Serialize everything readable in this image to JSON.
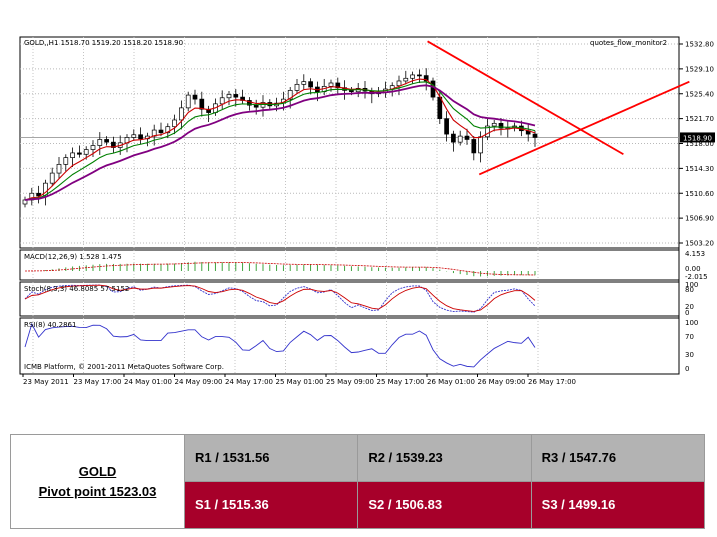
{
  "chart_data": {
    "type": "candlestick",
    "symbol_header": "GOLD,,H1  1518.70 1519.20 1518.20 1518.90",
    "indicator_label": "quotes_flow_monitor2",
    "price_axis": {
      "ticks": [
        "1532.80",
        "1529.10",
        "1525.40",
        "1521.70",
        "1518.00",
        "1514.30",
        "1510.60",
        "1506.90",
        "1503.20"
      ],
      "current_price": "1518.90",
      "ylim": [
        1503.2,
        1532.8
      ]
    },
    "time_axis_labels": [
      "23 May 2011",
      "23 May 17:00",
      "24 May 01:00",
      "24 May 09:00",
      "24 May 17:00",
      "25 May 01:00",
      "25 May 09:00",
      "25 May 17:00",
      "26 May 01:00",
      "26 May 09:00",
      "26 May 17:00"
    ],
    "close_series": [
      1509.6,
      1510.6,
      1510.2,
      1512.1,
      1513.6,
      1514.9,
      1515.9,
      1516.6,
      1516.4,
      1517.1,
      1517.7,
      1518.6,
      1518.2,
      1517.4,
      1518.1,
      1518.9,
      1519.3,
      1518.7,
      1519.1,
      1520.0,
      1519.6,
      1520.5,
      1521.5,
      1523.3,
      1525.2,
      1524.6,
      1523.1,
      1522.6,
      1523.9,
      1524.8,
      1525.3,
      1524.9,
      1524.4,
      1523.7,
      1523.4,
      1524.1,
      1523.6,
      1524.0,
      1524.6,
      1525.9,
      1526.8,
      1527.2,
      1526.4,
      1525.7,
      1526.5,
      1527.0,
      1526.3,
      1525.9,
      1525.7,
      1526.2,
      1525.8,
      1525.4,
      1525.6,
      1526.1,
      1526.6,
      1527.3,
      1527.7,
      1528.2,
      1528.1,
      1527.3,
      1524.9,
      1521.7,
      1519.4,
      1518.2,
      1519.1,
      1518.6,
      1516.6,
      1519.0,
      1520.6,
      1521.0,
      1520.3,
      1520.3,
      1520.6,
      1519.9,
      1519.4,
      1518.9
    ],
    "trend_lines": [
      {
        "from": [
          "23 May 2011 + 88 bars",
          1533.2
        ],
        "to": [
          "26 May 17:00 + 8 bars",
          1516.4
        ]
      },
      {
        "from": [
          "23 May 2011 + 98 bars",
          1513.4
        ],
        "to": [
          "26 May 17:00 + 30 bars",
          1527.2
        ]
      }
    ],
    "macd": {
      "label": "MACD(12,26,9) 1.528 1.475",
      "ticks": [
        "4.153",
        "0.00",
        "-2.015"
      ]
    },
    "stoch": {
      "label": "Stoch(8,3,3) 46.8085 57.5152",
      "ticks": [
        "100",
        "80",
        "20",
        "0"
      ]
    },
    "rsi": {
      "label": "RSI(8) 40.2861",
      "ticks": [
        "100",
        "70",
        "30",
        "0"
      ]
    },
    "copyright": "ICMB Platform, © 2001-2011 MetaQuotes Software Corp.",
    "colors": {
      "ma_fast": "#cc0000",
      "ma_mid": "#008000",
      "ma_slow": "#800080",
      "trend": "#ff0000",
      "indicator": "#3333cc"
    }
  },
  "pivot": {
    "instrument": "GOLD",
    "pivot_label": "Pivot point 1523.03",
    "resistances": [
      "R1 / 1531.56",
      "R2 / 1539.23",
      "R3 / 1547.76"
    ],
    "supports": [
      "S1 / 1515.36",
      "S2 / 1506.83",
      "S3 / 1499.16"
    ]
  }
}
